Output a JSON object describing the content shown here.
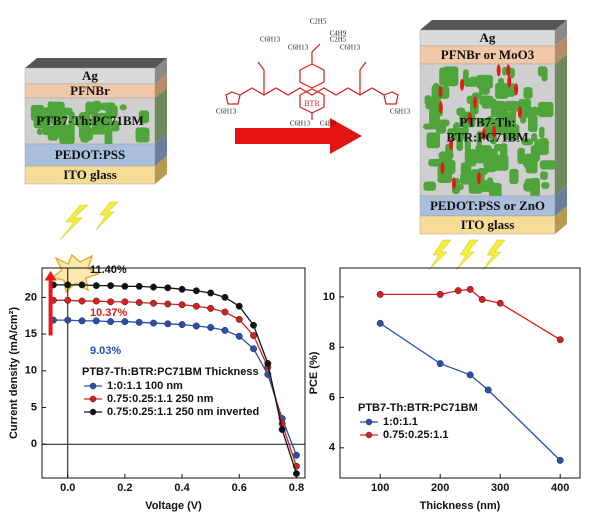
{
  "diagram": {
    "left_stack": {
      "layers": [
        "Ag",
        "PFNBr",
        "PTB7-Th:PC71BM",
        "PEDOT:PSS",
        "ITO glass"
      ]
    },
    "right_stack": {
      "layers": [
        "Ag",
        "PFNBr or MoO3",
        "PTB7-Th:\nBTR:PC71BM",
        "PEDOT:PSS or ZnO",
        "ITO glass"
      ]
    },
    "molecule": {
      "name": "BTR",
      "groups": [
        "C2H5",
        "C4H9",
        "C6H13",
        "C6H13",
        "C6H13",
        "C6H13",
        "C6H13",
        "C6H13",
        "C4H9",
        "C2H5"
      ]
    }
  },
  "chart_data": [
    {
      "type": "line",
      "x_label": "Voltage (V)",
      "y_label": "Current density (mA/cm²)",
      "xlim": [
        -0.09,
        0.83
      ],
      "ylim": [
        -4.6,
        24
      ],
      "xticks": [
        {
          "value": 0,
          "label": "0.0"
        },
        0.2,
        0.4,
        0.6,
        0.8
      ],
      "yticks": [
        0,
        5,
        10,
        15,
        20
      ],
      "legend_title": "PTB7-Th:BTR:PC71BM Thickness",
      "legend": "lower left",
      "x": [
        -0.05,
        0,
        0.05,
        0.1,
        0.15,
        0.2,
        0.25,
        0.3,
        0.35,
        0.4,
        0.45,
        0.5,
        0.55,
        0.6,
        0.65,
        0.7,
        0.75,
        0.8
      ],
      "series": [
        {
          "name": "1:0:1.1 100 nm",
          "color": "#2a4fb0",
          "values": [
            16.9,
            16.9,
            16.8,
            16.8,
            16.7,
            16.7,
            16.6,
            16.5,
            16.4,
            16.3,
            16.1,
            15.9,
            15.5,
            14.7,
            13.0,
            9.5,
            3.5,
            -1.5
          ]
        },
        {
          "name": "0.75:0.25:1.1 250 nm",
          "color": "#d62020",
          "values": [
            19.6,
            19.6,
            19.5,
            19.5,
            19.4,
            19.4,
            19.3,
            19.2,
            19.1,
            19.0,
            18.8,
            18.5,
            18.0,
            17.0,
            14.8,
            10.5,
            2.8,
            -3.0
          ]
        },
        {
          "name": "0.75:0.25:1.1 250 nm inverted",
          "color": "#111111",
          "values": [
            21.7,
            21.7,
            21.7,
            21.6,
            21.6,
            21.5,
            21.5,
            21.4,
            21.3,
            21.1,
            20.9,
            20.6,
            20.0,
            18.8,
            16.2,
            11.0,
            2.0,
            -4.0
          ]
        }
      ],
      "annotations": [
        {
          "text": "11.40%",
          "color": "#111111"
        },
        {
          "text": "10.37%",
          "color": "#d62020"
        },
        {
          "text": "9.03%",
          "color": "#2a4fb0"
        }
      ]
    },
    {
      "type": "line",
      "x_label": "Thickness (nm)",
      "y_label": "PCE (%)",
      "xlim": [
        33,
        433
      ],
      "ylim": [
        2.8,
        11.15
      ],
      "xticks": [
        100,
        200,
        300,
        400
      ],
      "yticks": [
        4,
        6,
        8,
        10
      ],
      "legend_title": "PTB7-Th:BTR:PC71BM",
      "legend": "lower left",
      "series": [
        {
          "name": "1:0:1.1",
          "color": "#2a4fb0",
          "x": [
            100,
            200,
            250,
            280,
            400
          ],
          "values": [
            8.95,
            7.35,
            6.9,
            6.3,
            3.5
          ]
        },
        {
          "name": "0.75:0.25:1.1",
          "color": "#d62020",
          "x": [
            100,
            200,
            230,
            250,
            270,
            300,
            400
          ],
          "values": [
            10.1,
            10.1,
            10.25,
            10.3,
            9.9,
            9.75,
            8.3
          ]
        }
      ]
    }
  ]
}
